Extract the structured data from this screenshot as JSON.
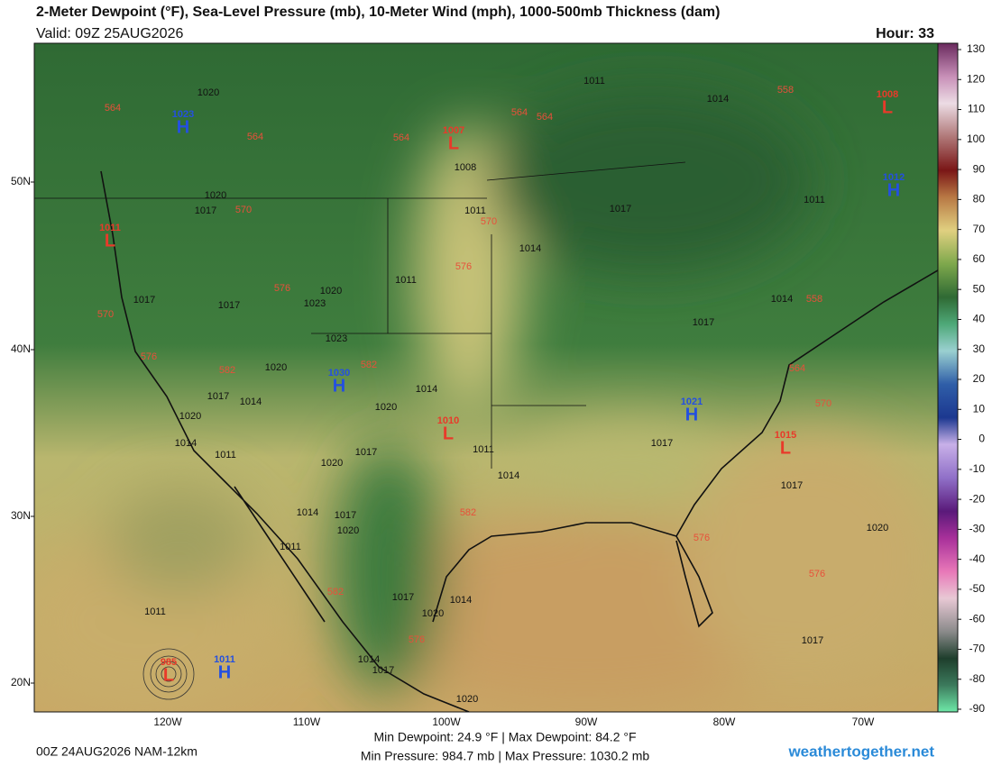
{
  "header": {
    "title": "2-Meter Dewpoint (°F), Sea-Level Pressure (mb), 10-Meter Wind (mph), 1000-500mb Thickness (dam)",
    "valid": "Valid: 09Z 25AUG2026",
    "hour": "Hour: 33"
  },
  "colorbar": {
    "ticks": [
      130,
      120,
      110,
      100,
      90,
      80,
      70,
      60,
      50,
      40,
      30,
      20,
      10,
      0,
      -10,
      -20,
      -30,
      -40,
      -50,
      -60,
      -70,
      -80,
      -90
    ]
  },
  "latitude_labels": [
    "50N",
    "40N",
    "30N",
    "20N"
  ],
  "longitude_labels": [
    "120W",
    "110W",
    "100W",
    "90W",
    "80W",
    "70W"
  ],
  "pressure_centers": [
    {
      "letter": "H",
      "value": 1023
    },
    {
      "letter": "L",
      "value": 1007
    },
    {
      "letter": "L",
      "value": 1008
    },
    {
      "letter": "H",
      "value": 1012
    },
    {
      "letter": "L",
      "value": 1011
    },
    {
      "letter": "H",
      "value": 1030
    },
    {
      "letter": "L",
      "value": 1010
    },
    {
      "letter": "H",
      "value": 1021
    },
    {
      "letter": "L",
      "value": 1015
    },
    {
      "letter": "H",
      "value": 1011
    },
    {
      "letter": "L",
      "value": 985
    }
  ],
  "isobar_labels": [
    1020,
    1011,
    1014,
    1008,
    1020,
    1017,
    1011,
    1017,
    1011,
    1014,
    1017,
    1017,
    1020,
    1023,
    1011,
    1014,
    1017,
    1023,
    1020,
    1014,
    1017,
    1014,
    1020,
    1020,
    1014,
    1011,
    1017,
    1011,
    1017,
    1020,
    1014,
    1017,
    1014,
    1017,
    1020,
    1011,
    1020,
    1017,
    1014,
    1020,
    1011,
    1017,
    1014,
    1017,
    1020
  ],
  "thickness_labels": [
    564,
    564,
    564,
    564,
    564,
    558,
    570,
    570,
    576,
    576,
    570,
    576,
    582,
    582,
    570,
    564,
    558,
    582,
    576,
    576,
    582,
    576
  ],
  "footer": {
    "model": "00Z 24AUG2026 NAM-12km",
    "dewpoint_range": "Min Dewpoint:  24.9 °F | Max Dewpoint:  84.2 °F",
    "pressure_range": "Min Pressure: 984.7 mb | Max Pressure: 1030.2 mb",
    "site": "weathertogether.net"
  }
}
